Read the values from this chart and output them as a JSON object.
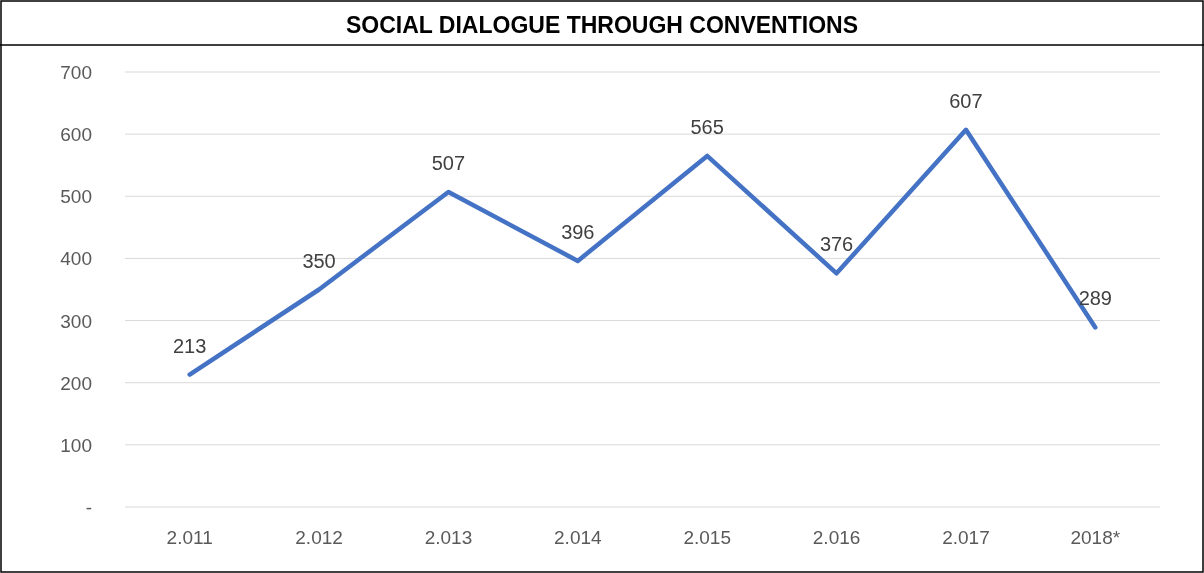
{
  "chart_data": {
    "type": "line",
    "title": "SOCIAL DIALOGUE THROUGH CONVENTIONS",
    "categories": [
      "2.011",
      "2.012",
      "2.013",
      "2.014",
      "2.015",
      "2.016",
      "2.017",
      "2018*"
    ],
    "series": [
      {
        "color": "#4472c4",
        "values": [
          213,
          350,
          507,
          396,
          565,
          376,
          607,
          289
        ]
      }
    ],
    "ylim": [
      0,
      700
    ],
    "yticks": [
      {
        "value": 0,
        "label": "-"
      },
      100,
      200,
      300,
      400,
      500,
      600,
      700
    ],
    "grid": "y",
    "data_labels": true,
    "marker": "none",
    "line_style": "solid"
  }
}
